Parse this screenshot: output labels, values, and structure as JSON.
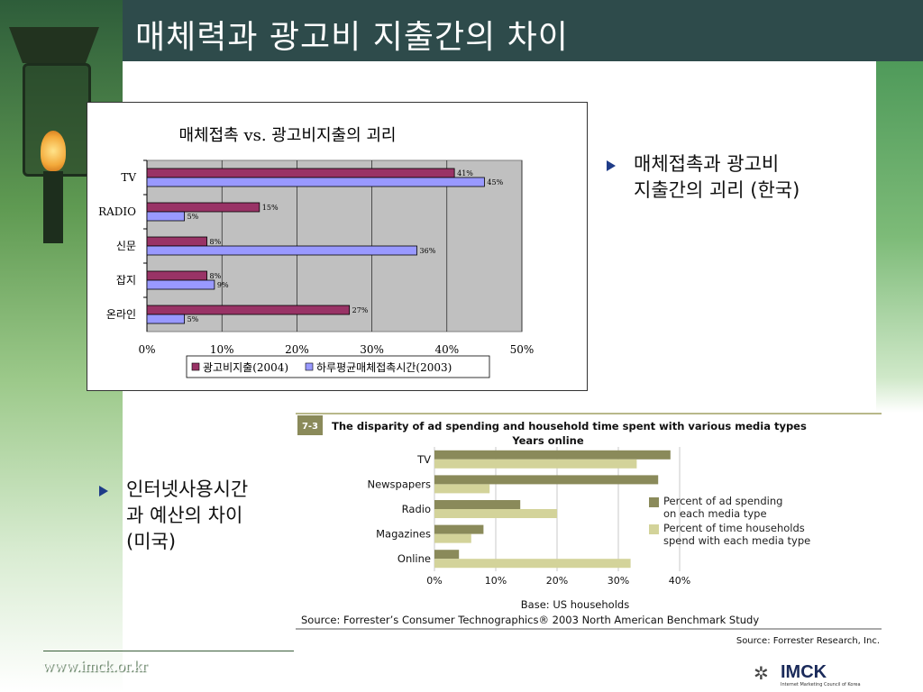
{
  "title": "매체력과 광고비 지출간의 차이",
  "bullets": [
    {
      "line1": "매체접촉과 광고비",
      "line2": "지출간의 괴리 (한국)"
    },
    {
      "line1": "인터넷사용시간",
      "line2": "과 예산의 차이",
      "line3": "(미국)"
    }
  ],
  "chart_data": [
    {
      "type": "bar",
      "title": "매체접촉 vs.  광고비지출의 괴리",
      "categories": [
        "TV",
        "RADIO",
        "신문",
        "잡지",
        "온라인"
      ],
      "series": [
        {
          "name": "광고비지출(2004)",
          "values": [
            41,
            15,
            8,
            8,
            27
          ],
          "labels": [
            "41%",
            "15%",
            "8%",
            "8%",
            "27%"
          ],
          "color": "#993366"
        },
        {
          "name": "하루평균매체접촉시간(2003)",
          "values": [
            45,
            5,
            36,
            9,
            5
          ],
          "labels": [
            "45%",
            "5%",
            "36%",
            "9%",
            "5%"
          ],
          "color": "#9999ff"
        }
      ],
      "xlim": [
        0,
        50
      ],
      "ticks": [
        "0%",
        "10%",
        "20%",
        "30%",
        "40%",
        "50%"
      ],
      "grid": true,
      "plot_bg": "#c0c0c0",
      "legend": "bottom"
    },
    {
      "type": "bar",
      "figure_number": "7-3",
      "title": "The disparity of ad spending and household time spent with various media types",
      "subtitle": "Years online",
      "categories": [
        "TV",
        "Newspapers",
        "Radio",
        "Magazines",
        "Online"
      ],
      "series": [
        {
          "name": "Percent of ad spending on each media type",
          "name_line1": "Percent of ad spending",
          "name_line2": "on each media type",
          "values": [
            38.5,
            36.5,
            14,
            8,
            4
          ],
          "color": "#8a8a5a"
        },
        {
          "name": "Percent of time households spend with each media type",
          "name_line1": "Percent of time households",
          "name_line2": "spend with each media type",
          "values": [
            33,
            9,
            20,
            6,
            32
          ],
          "color": "#d3d39a"
        }
      ],
      "xlim": [
        0,
        40
      ],
      "ticks": [
        "0%",
        "10%",
        "20%",
        "30%",
        "40%"
      ],
      "grid": true,
      "legend": "right",
      "base": "Base: US households",
      "source": "Source: Forrester’s Consumer Technographics® 2003 North American Benchmark Study",
      "credit": "Source: Forrester Research, Inc."
    }
  ],
  "footer": {
    "url": "www.imck.or.kr"
  },
  "logo": {
    "name": "IMCK",
    "subtitle": "Internet Marketing Council of Korea"
  }
}
